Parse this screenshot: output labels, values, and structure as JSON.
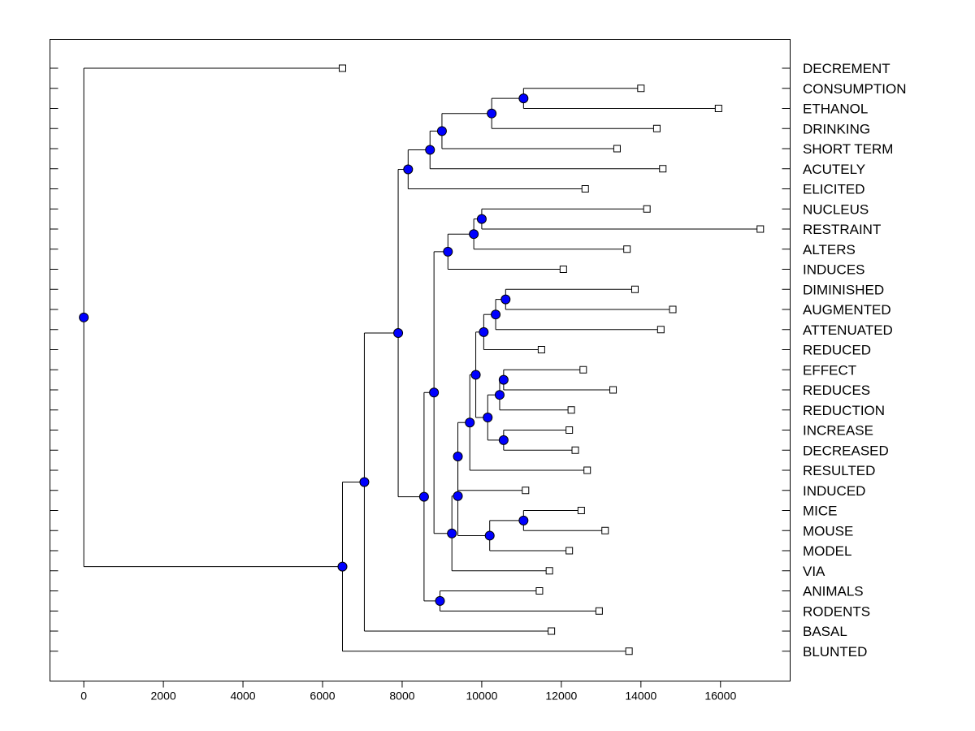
{
  "chart_data": {
    "type": "dendrogram",
    "title": "",
    "xlabel": "",
    "ylabel": "",
    "xlim": [
      -850,
      17750
    ],
    "x_ticks": [
      "0",
      "2000",
      "4000",
      "6000",
      "8000",
      "10000",
      "12000",
      "14000",
      "16000"
    ],
    "leaves": [
      {
        "label": "DECREMENT",
        "value": 6500
      },
      {
        "label": "CONSUMPTION",
        "value": 14000
      },
      {
        "label": "ETHANOL",
        "value": 15950
      },
      {
        "label": "DRINKING",
        "value": 14400
      },
      {
        "label": "SHORT TERM",
        "value": 13400
      },
      {
        "label": "ACUTELY",
        "value": 14550
      },
      {
        "label": "ELICITED",
        "value": 12600
      },
      {
        "label": "NUCLEUS",
        "value": 14150
      },
      {
        "label": "RESTRAINT",
        "value": 17000
      },
      {
        "label": "ALTERS",
        "value": 13650
      },
      {
        "label": "INDUCES",
        "value": 12050
      },
      {
        "label": "DIMINISHED",
        "value": 13850
      },
      {
        "label": "AUGMENTED",
        "value": 14800
      },
      {
        "label": "ATTENUATED",
        "value": 14500
      },
      {
        "label": "REDUCED",
        "value": 11500
      },
      {
        "label": "EFFECT",
        "value": 12550
      },
      {
        "label": "REDUCES",
        "value": 13300
      },
      {
        "label": "REDUCTION",
        "value": 12250
      },
      {
        "label": "INCREASE",
        "value": 12200
      },
      {
        "label": "DECREASED",
        "value": 12350
      },
      {
        "label": "RESULTED",
        "value": 12650
      },
      {
        "label": "INDUCED",
        "value": 11100
      },
      {
        "label": "MICE",
        "value": 12500
      },
      {
        "label": "MOUSE",
        "value": 13100
      },
      {
        "label": "MODEL",
        "value": 12200
      },
      {
        "label": "VIA",
        "value": 11700
      },
      {
        "label": "ANIMALS",
        "value": 11450
      },
      {
        "label": "RODENTS",
        "value": 12950
      },
      {
        "label": "BASAL",
        "value": 11750
      },
      {
        "label": "BLUNTED",
        "value": 13700
      }
    ],
    "merges": [
      {
        "id": "m1",
        "children": [
          "L1",
          "L2"
        ],
        "value": 11050
      },
      {
        "id": "m2",
        "children": [
          "m1",
          "L3"
        ],
        "value": 10250
      },
      {
        "id": "m3",
        "children": [
          "m2",
          "L4"
        ],
        "value": 9000
      },
      {
        "id": "m4",
        "children": [
          "m3",
          "L5"
        ],
        "value": 8700
      },
      {
        "id": "m5",
        "children": [
          "m4",
          "L6"
        ],
        "value": 8150
      },
      {
        "id": "m6",
        "children": [
          "L7",
          "L8"
        ],
        "value": 10000
      },
      {
        "id": "m7",
        "children": [
          "m6",
          "L9"
        ],
        "value": 9800
      },
      {
        "id": "m8",
        "children": [
          "m7",
          "L10"
        ],
        "value": 9150
      },
      {
        "id": "m9",
        "children": [
          "L11",
          "L12"
        ],
        "value": 10600
      },
      {
        "id": "m10",
        "children": [
          "m9",
          "L13"
        ],
        "value": 10350
      },
      {
        "id": "m11",
        "children": [
          "m10",
          "L14"
        ],
        "value": 10050
      },
      {
        "id": "m12",
        "children": [
          "L15",
          "L16"
        ],
        "value": 10550
      },
      {
        "id": "m13",
        "children": [
          "m12",
          "L17"
        ],
        "value": 10450
      },
      {
        "id": "m14",
        "children": [
          "L18",
          "L19"
        ],
        "value": 10550
      },
      {
        "id": "m15",
        "children": [
          "m13",
          "m14"
        ],
        "value": 10150
      },
      {
        "id": "m16",
        "children": [
          "m11",
          "m15"
        ],
        "value": 9850
      },
      {
        "id": "m17",
        "children": [
          "m16",
          "L20"
        ],
        "value": 9700
      },
      {
        "id": "m18",
        "children": [
          "m17",
          "L21"
        ],
        "value": 9400
      },
      {
        "id": "m19",
        "children": [
          "L22",
          "L23"
        ],
        "value": 11050
      },
      {
        "id": "m20",
        "children": [
          "m19",
          "L24"
        ],
        "value": 10200
      },
      {
        "id": "m21",
        "children": [
          "m18",
          "m20"
        ],
        "value": 9400
      },
      {
        "id": "m22",
        "children": [
          "m21",
          "L25"
        ],
        "value": 9250
      },
      {
        "id": "m23",
        "children": [
          "m8",
          "m22"
        ],
        "value": 8800
      },
      {
        "id": "m24",
        "children": [
          "L26",
          "L27"
        ],
        "value": 8950
      },
      {
        "id": "m25",
        "children": [
          "m23",
          "m24"
        ],
        "value": 8550
      },
      {
        "id": "m26",
        "children": [
          "m5",
          "m25"
        ],
        "value": 7900
      },
      {
        "id": "m27",
        "children": [
          "m26",
          "L28"
        ],
        "value": 7050
      },
      {
        "id": "m28",
        "children": [
          "m27",
          "L29"
        ],
        "value": 6500
      },
      {
        "id": "m29",
        "children": [
          "L0",
          "m28"
        ],
        "value": 0
      }
    ],
    "colors": {
      "node_fill": "#0000ff",
      "leaf_fill": "#ffffff",
      "line": "#000000"
    }
  }
}
